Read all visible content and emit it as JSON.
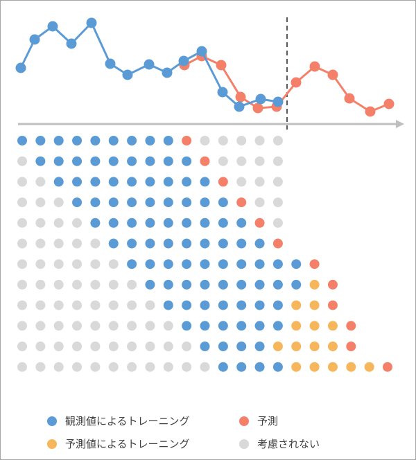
{
  "colors": {
    "observed": "#5b9bd5",
    "forecast": "#f4806a",
    "predicted_training": "#f6b65c",
    "ignored": "#d9d9d9",
    "axis": "#bfbfbf",
    "divider": "#595959"
  },
  "legend": [
    {
      "key": "observed",
      "label": "観測値によるトレーニング"
    },
    {
      "key": "forecast",
      "label": "予測"
    },
    {
      "key": "predicted_training",
      "label": "予測値によるトレーニング"
    },
    {
      "key": "ignored",
      "label": "考慮されない"
    }
  ],
  "grid_legend_codes": {
    "o": "observed",
    "f": "forecast",
    "p": "predicted_training",
    "g": "ignored"
  },
  "grid_rows": [
    "ooooooooofggggg",
    "gooooooooofgggg",
    "ggooooooooofggg",
    "gggooooooooofgg",
    "ggggooooooooofg",
    "gggggooooooooof",
    "ggggggoooooooooof",
    "gggggggooooooooopf",
    "ggggggggoooooooppf",
    "gggggggggoooooopppf",
    "ggggggggggooooppppf",
    "gggggggggggoooopppppf"
  ]
}
